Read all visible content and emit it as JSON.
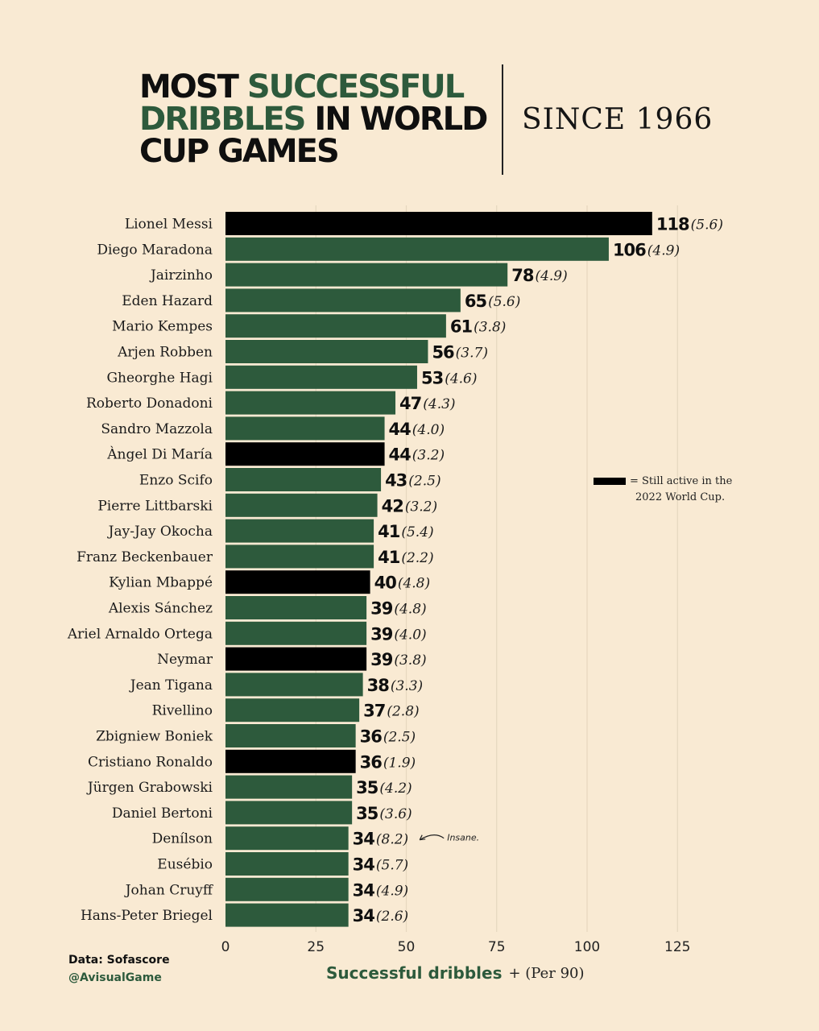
{
  "header": {
    "title_part1": "MOST ",
    "title_hl1": "SUCCESSFUL DRIBBLES",
    "title_part2": " IN WORLD CUP GAMES",
    "subtitle": "SINCE 1966"
  },
  "footer": {
    "source": "Data: Sofascore",
    "handle": "@AvisualGame"
  },
  "colors": {
    "background": "#f9ead3",
    "green_bar": "#2d5a3c",
    "active_bar": "#000000",
    "grid": "#e6d7bf"
  },
  "chart_data": {
    "type": "bar",
    "orientation": "horizontal",
    "categories": [
      "Lionel Messi",
      "Diego Maradona",
      "Jairzinho",
      "Eden Hazard",
      "Mario Kempes",
      "Arjen Robben",
      "Gheorghe Hagi",
      "Roberto Donadoni",
      "Sandro Mazzola",
      "Àngel Di María",
      "Enzo Scifo",
      "Pierre Littbarski",
      "Jay-Jay Okocha",
      "Franz Beckenbauer",
      "Kylian Mbappé",
      "Alexis Sánchez",
      "Ariel Arnaldo Ortega",
      "Neymar",
      "Jean Tigana",
      "Rivellino",
      "Zbigniew Boniek",
      "Cristiano Ronaldo",
      "Jürgen Grabowski",
      "Daniel Bertoni",
      "Denílson",
      "Eusébio",
      "Johan Cruyff",
      "Hans-Peter Briegel"
    ],
    "values": [
      118,
      106,
      78,
      65,
      61,
      56,
      53,
      47,
      44,
      44,
      43,
      42,
      41,
      41,
      40,
      39,
      39,
      39,
      38,
      37,
      36,
      36,
      35,
      35,
      34,
      34,
      34,
      34
    ],
    "per90_labels": [
      "(5.6)",
      "(4.9)",
      "(4.9)",
      "(5.6)",
      "(3.8)",
      "(3.7)",
      "(4.6)",
      "(4.3)",
      "(4.0)",
      "(3.2)",
      "(2.5)",
      "(3.2)",
      "(5.4)",
      "(2.2)",
      "(4.8)",
      "(4.8)",
      "(4.0)",
      "(3.8)",
      "(3.3)",
      "(2.8)",
      "(2.5)",
      "(1.9)",
      "(4.2)",
      "(3.6)",
      "(8.2)",
      "(5.7)",
      "(4.9)",
      "(2.6)"
    ],
    "active_2022": [
      true,
      false,
      false,
      false,
      false,
      false,
      false,
      false,
      false,
      true,
      false,
      false,
      false,
      false,
      true,
      false,
      false,
      true,
      false,
      false,
      false,
      true,
      false,
      false,
      false,
      false,
      false,
      false
    ],
    "xlim": [
      0,
      125
    ],
    "xticks": [
      "0",
      "25",
      "50",
      "75",
      "100",
      "125"
    ],
    "xlabel": "Successful dribbles",
    "xlabel_suffix": "+ (Per 90)",
    "grid": true,
    "legend": {
      "label_line1": "= Still active in the",
      "label_line2": "2022 World Cup.",
      "placement": "right"
    },
    "annotation": {
      "text": "Insane.",
      "target": "Denílson"
    }
  }
}
